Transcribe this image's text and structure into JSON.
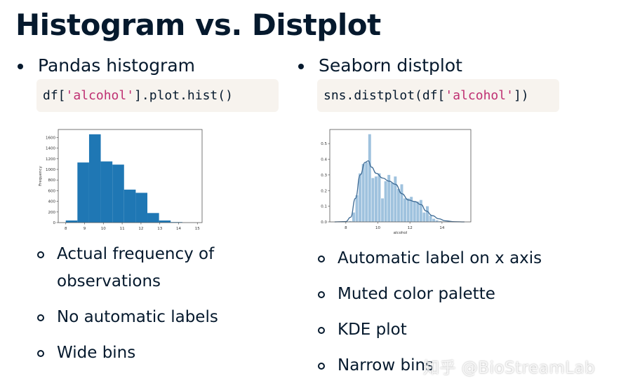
{
  "slide": {
    "title": "Histogram vs. Distplot",
    "left": {
      "heading": "Pandas histogram",
      "code": {
        "prefix": "df[",
        "string": "'alcohol'",
        "suffix": "].plot.hist()"
      },
      "points": [
        "Actual frequency of observations",
        "No automatic labels",
        "Wide bins"
      ]
    },
    "right": {
      "heading": "Seaborn distplot",
      "code": {
        "prefix": "sns.distplot(df[",
        "string": "'alcohol'",
        "suffix": "])"
      },
      "points": [
        "Automatic label on x axis",
        "Muted color palette",
        "KDE plot",
        "Narrow bins"
      ]
    },
    "watermark": "知乎 @BioStreamLab",
    "colors": {
      "text": "#05192d",
      "code_bg": "#f7f3ee",
      "code_string": "#bf3072",
      "hist_bar": "#1f77b4",
      "dist_bar": "#9fc2de",
      "kde_line": "#3d6a94"
    }
  },
  "chart_data": [
    {
      "type": "bar",
      "title": "",
      "xlabel": "",
      "ylabel": "Frequency",
      "bin_edges": [
        8.0,
        8.62,
        9.24,
        9.86,
        10.48,
        11.1,
        11.72,
        12.34,
        12.96,
        13.58,
        14.2
      ],
      "values": [
        40,
        1130,
        1660,
        1150,
        1090,
        620,
        560,
        180,
        40,
        10
      ],
      "xticks": [
        8,
        9,
        10,
        11,
        12,
        13,
        14,
        15
      ],
      "yticks": [
        0,
        200,
        400,
        600,
        800,
        1000,
        1200,
        1400,
        1600
      ],
      "xlim": [
        7.6,
        15.25
      ],
      "ylim": [
        0,
        1750
      ],
      "grid": false
    },
    {
      "type": "bar",
      "title": "",
      "xlabel": "alcohol",
      "ylabel": "",
      "bin_edges": [
        8.0,
        8.2,
        8.4,
        8.6,
        8.8,
        9.0,
        9.2,
        9.4,
        9.6,
        9.8,
        10.0,
        10.2,
        10.4,
        10.6,
        10.8,
        11.0,
        11.2,
        11.4,
        11.6,
        11.8,
        12.0,
        12.2,
        12.4,
        12.6,
        12.8,
        13.0,
        13.2,
        13.4,
        13.6,
        13.8,
        14.0,
        14.2
      ],
      "values": [
        0.002,
        0.005,
        0.06,
        0.17,
        0.31,
        0.37,
        0.38,
        0.56,
        0.28,
        0.29,
        0.31,
        0.15,
        0.26,
        0.3,
        0.25,
        0.29,
        0.21,
        0.24,
        0.15,
        0.15,
        0.16,
        0.13,
        0.13,
        0.14,
        0.06,
        0.1,
        0.04,
        0.02,
        0.01,
        0.005,
        0.002
      ],
      "kde": {
        "x": [
          7.3,
          8.0,
          8.3,
          8.6,
          8.9,
          9.2,
          9.4,
          9.6,
          9.9,
          10.3,
          10.7,
          11.1,
          11.5,
          11.9,
          12.3,
          12.7,
          13.0,
          13.4,
          13.8,
          14.2,
          14.8,
          15.4
        ],
        "y": [
          0.0,
          0.002,
          0.03,
          0.15,
          0.3,
          0.38,
          0.39,
          0.35,
          0.31,
          0.28,
          0.26,
          0.24,
          0.18,
          0.14,
          0.13,
          0.11,
          0.07,
          0.04,
          0.02,
          0.007,
          0.001,
          0.0
        ]
      },
      "xticks": [
        8,
        10,
        12,
        14
      ],
      "yticks": [
        0.0,
        0.1,
        0.2,
        0.3,
        0.4,
        0.5
      ],
      "xlim": [
        7.0,
        15.8
      ],
      "ylim": [
        0,
        0.59
      ],
      "grid": false
    }
  ]
}
